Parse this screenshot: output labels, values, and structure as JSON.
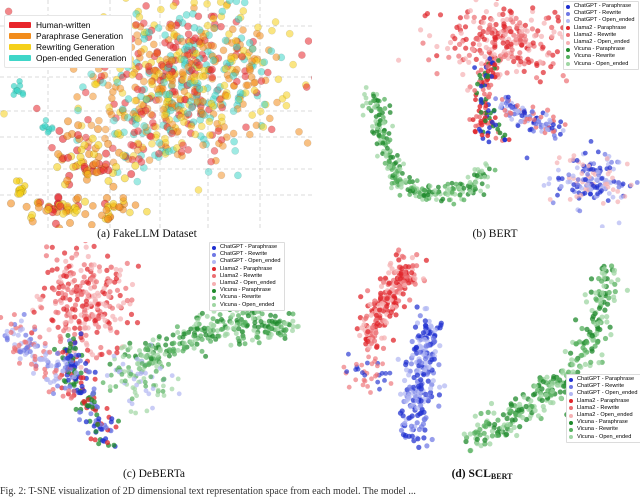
{
  "figure": {
    "panels": [
      {
        "id": "a",
        "caption": "(a) FakeLLM Dataset",
        "legend": [
          {
            "label": "Human-written",
            "color": "#e8262b"
          },
          {
            "label": "Paraphrase Generation",
            "color": "#f28c1c"
          },
          {
            "label": "Rewriting Generation",
            "color": "#f5d01a"
          },
          {
            "label": "Open-ended Generation",
            "color": "#3fd6c8"
          }
        ]
      },
      {
        "id": "b",
        "caption": "(b) BERT",
        "legend": [
          {
            "label": "ChatGPT - Paraphrase",
            "color": "#1f2fd0"
          },
          {
            "label": "ChatGPT - Rewrite",
            "color": "#6f78e4"
          },
          {
            "label": "ChatGPT - Open_ended",
            "color": "#b2b7f2"
          },
          {
            "label": "Llama2 - Paraphrase",
            "color": "#e0252b"
          },
          {
            "label": "Llama2 - Rewrite",
            "color": "#ec6f73"
          },
          {
            "label": "Llama2 - Open_ended",
            "color": "#f5b1b3"
          },
          {
            "label": "Vicuna - Paraphrase",
            "color": "#1f8a2c"
          },
          {
            "label": "Vicuna - Rewrite",
            "color": "#55b05e"
          },
          {
            "label": "Vicuna - Open_ended",
            "color": "#9fd6a3"
          }
        ]
      },
      {
        "id": "c",
        "caption": "(c) DeBERTa",
        "legend": [
          {
            "label": "ChatGPT - Paraphrase",
            "color": "#1f2fd0"
          },
          {
            "label": "ChatGPT - Rewrite",
            "color": "#6f78e4"
          },
          {
            "label": "ChatGPT - Open_ended",
            "color": "#b2b7f2"
          },
          {
            "label": "Llama2 - Paraphrase",
            "color": "#e0252b"
          },
          {
            "label": "Llama2 - Rewrite",
            "color": "#ec6f73"
          },
          {
            "label": "Llama2 - Open_ended",
            "color": "#f5b1b3"
          },
          {
            "label": "Vicuna - Paraphrase",
            "color": "#1f8a2c"
          },
          {
            "label": "Vicuna - Rewrite",
            "color": "#55b05e"
          },
          {
            "label": "Vicuna - Open_ended",
            "color": "#9fd6a3"
          }
        ]
      },
      {
        "id": "d",
        "caption_main": "(d) SCL",
        "caption_sub": "BERT",
        "legend": [
          {
            "label": "ChatGPT - Paraphrase",
            "color": "#1f2fd0"
          },
          {
            "label": "ChatGPT - Rewrite",
            "color": "#6f78e4"
          },
          {
            "label": "ChatGPT - Open_ended",
            "color": "#b2b7f2"
          },
          {
            "label": "Llama2 - Paraphrase",
            "color": "#e0252b"
          },
          {
            "label": "Llama2 - Rewrite",
            "color": "#ec6f73"
          },
          {
            "label": "Llama2 - Open_ended",
            "color": "#f5b1b3"
          },
          {
            "label": "Vicuna - Paraphrase",
            "color": "#1f8a2c"
          },
          {
            "label": "Vicuna - Rewrite",
            "color": "#55b05e"
          },
          {
            "label": "Vicuna - Open_ended",
            "color": "#9fd6a3"
          }
        ]
      }
    ],
    "footer_text": "Fig. 2: T-SNE visualization of 2D dimensional text representation space from each model. The model ..."
  }
}
